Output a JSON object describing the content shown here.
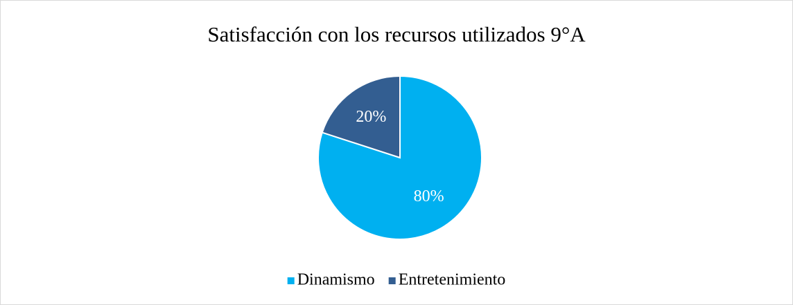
{
  "chart_data": {
    "type": "pie",
    "title": "Satisfacción con los recursos utilizados 9°A",
    "categories": [
      "Dinamismo",
      "Entretenimiento"
    ],
    "values": [
      80,
      20
    ],
    "value_labels": [
      "80%",
      "20%"
    ],
    "colors": [
      "#00b0f0",
      "#335e91"
    ],
    "legend": "bottom"
  }
}
